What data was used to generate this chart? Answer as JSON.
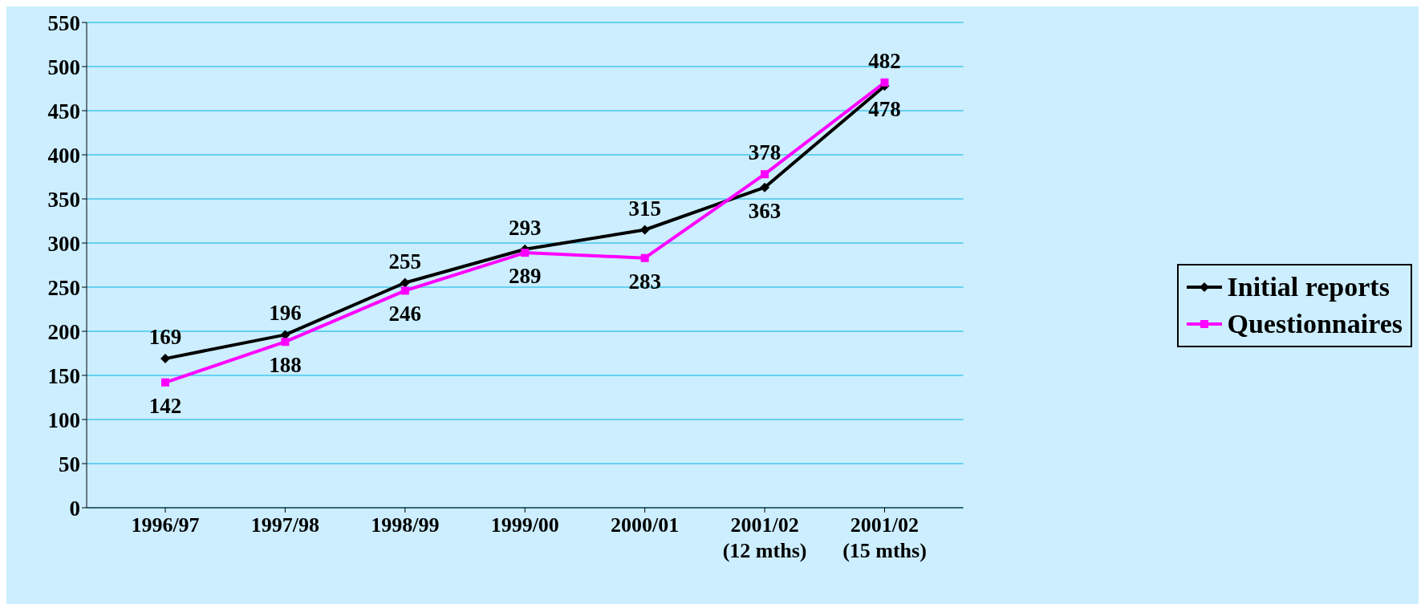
{
  "chart_data": {
    "type": "line",
    "categories": [
      "1996/97",
      "1997/98",
      "1998/99",
      "1999/00",
      "2000/01",
      "2001/02 (12 mths)",
      "2001/02 (15 mths)"
    ],
    "series": [
      {
        "name": "Initial reports",
        "color": "#000000",
        "marker": "diamond",
        "values": [
          169,
          196,
          255,
          293,
          315,
          363,
          478
        ]
      },
      {
        "name": "Questionnaires",
        "color": "#ff00ff",
        "marker": "square",
        "values": [
          142,
          188,
          246,
          289,
          283,
          378,
          482
        ]
      }
    ],
    "ylim": [
      0,
      550
    ],
    "yticks": [
      0,
      50,
      100,
      150,
      200,
      250,
      300,
      350,
      400,
      450,
      500,
      550
    ],
    "grid": "y",
    "legend": "right",
    "data_labels": true,
    "line_style": "solid"
  }
}
